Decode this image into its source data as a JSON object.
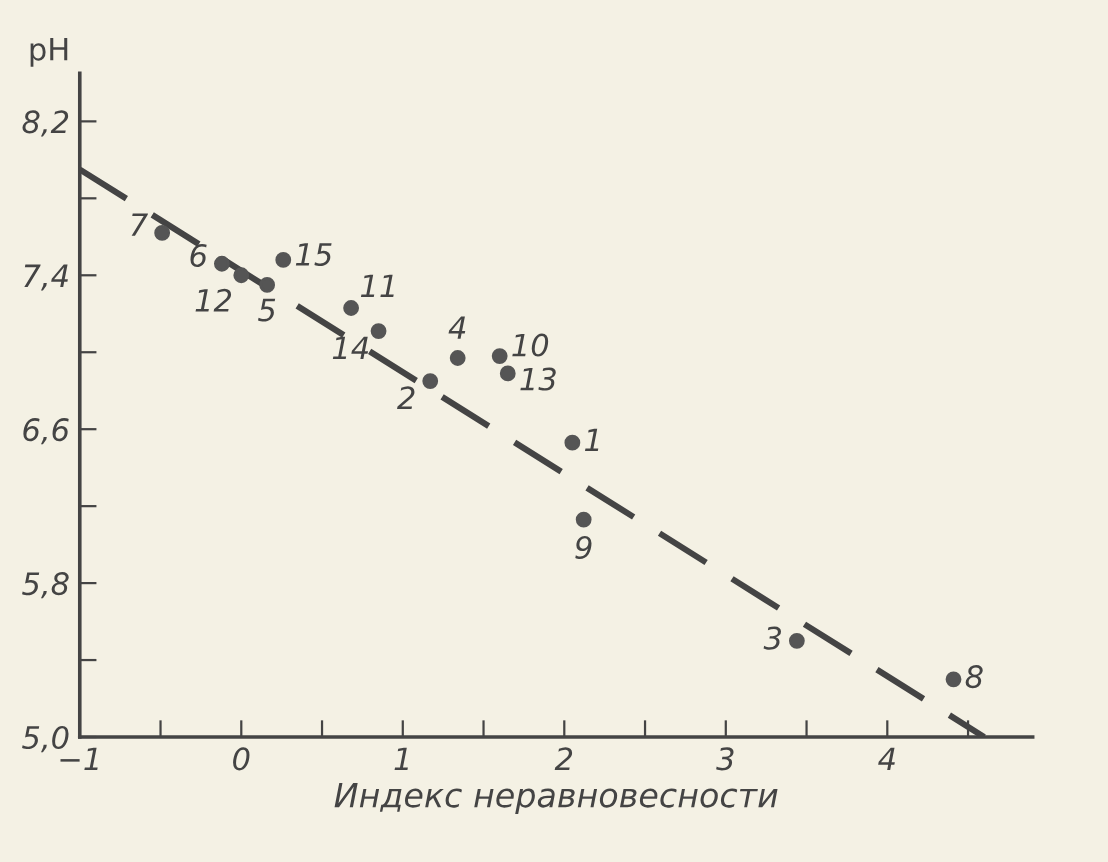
{
  "chart_data": {
    "type": "scatter",
    "xlabel": "Индекс неравновесности",
    "ylabel": "pH",
    "xlim": [
      -1,
      4.9
    ],
    "ylim": [
      5.0,
      8.45
    ],
    "xticks": [
      -1,
      {
        "value": -0.5,
        "label": null
      },
      0,
      {
        "value": 0.5,
        "label": null
      },
      1,
      {
        "value": 1.5,
        "label": null
      },
      2,
      {
        "value": 2.5,
        "label": null
      },
      3,
      {
        "value": 3.5,
        "label": null
      },
      4,
      {
        "value": 4.5,
        "label": null
      }
    ],
    "yticks": [
      {
        "value": 5.0,
        "label": "5,0"
      },
      {
        "value": 5.4,
        "label": null
      },
      {
        "value": 5.8,
        "label": "5,8"
      },
      {
        "value": 6.2,
        "label": null
      },
      {
        "value": 6.6,
        "label": "6,6"
      },
      {
        "value": 7.0,
        "label": null
      },
      {
        "value": 7.4,
        "label": "7,4"
      },
      {
        "value": 7.8,
        "label": null
      },
      {
        "value": 8.2,
        "label": "8,2"
      }
    ],
    "grid": false,
    "series": [
      {
        "marker": "circle",
        "color": "#555555",
        "x": [
          2.05,
          1.17,
          3.44,
          1.34,
          0.16,
          -0.12,
          -0.49,
          4.41,
          2.12,
          1.6,
          0.68,
          0.0,
          1.65,
          0.85,
          0.26
        ],
        "values": [
          6.53,
          6.85,
          5.5,
          6.97,
          7.35,
          7.46,
          7.62,
          5.3,
          6.13,
          6.98,
          7.23,
          7.4,
          6.89,
          7.11,
          7.48
        ]
      },
      {
        "type": "line",
        "color": "#444444",
        "line_style": "dashed",
        "x": [
          -1,
          4.6
        ],
        "values": [
          7.95,
          5.0
        ]
      }
    ],
    "annotations": [
      {
        "text": "1",
        "x": 2.05,
        "y": 6.53
      },
      {
        "text": "2",
        "x": 1.17,
        "y": 6.85
      },
      {
        "text": "3",
        "x": 3.44,
        "y": 5.5
      },
      {
        "text": "4",
        "x": 1.34,
        "y": 6.97
      },
      {
        "text": "5",
        "x": 0.16,
        "y": 7.35
      },
      {
        "text": "6",
        "x": -0.12,
        "y": 7.46
      },
      {
        "text": "7",
        "x": -0.49,
        "y": 7.62
      },
      {
        "text": "8",
        "x": 4.41,
        "y": 5.3
      },
      {
        "text": "9",
        "x": 2.12,
        "y": 6.13
      },
      {
        "text": "10",
        "x": 1.6,
        "y": 6.98
      },
      {
        "text": "11",
        "x": 0.68,
        "y": 7.23
      },
      {
        "text": "12",
        "x": 0.0,
        "y": 7.4
      },
      {
        "text": "13",
        "x": 1.65,
        "y": 6.89
      },
      {
        "text": "14",
        "x": 0.85,
        "y": 7.11
      },
      {
        "text": "15",
        "x": 0.26,
        "y": 7.48
      }
    ]
  }
}
